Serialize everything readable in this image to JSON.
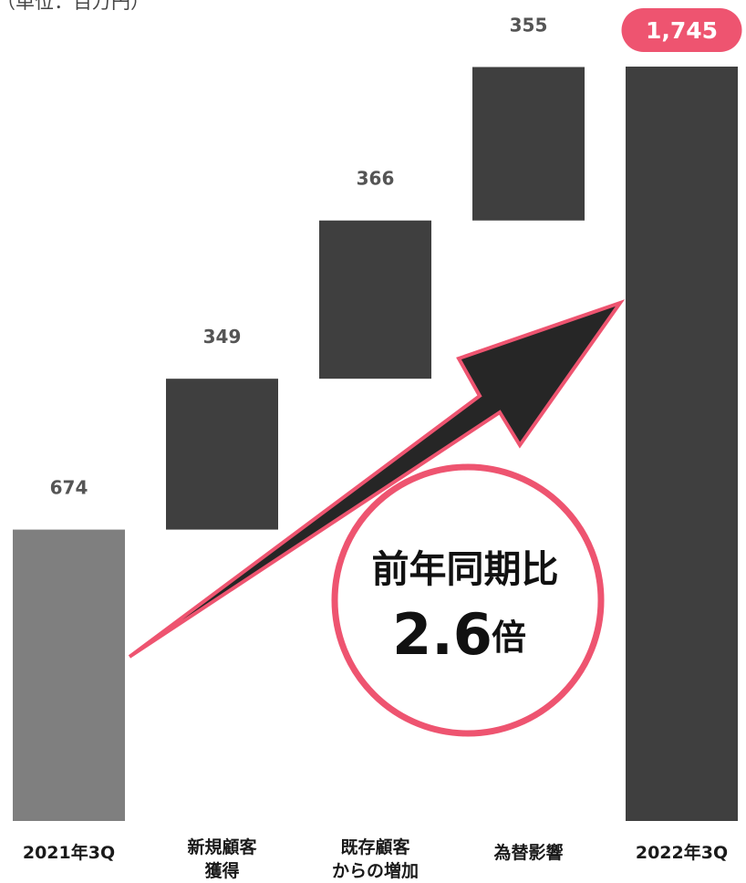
{
  "unit_note": "（単位：百万円）",
  "colors": {
    "start_bar": "#7f7f7f",
    "bar": "#3f3f3f",
    "accent": "#ee5470",
    "arrow": "#262626"
  },
  "callout": {
    "line1": "前年同期比",
    "value": "2.6",
    "suffix": "倍"
  },
  "chart_data": {
    "type": "bar",
    "subtype": "waterfall",
    "categories": [
      "2021年3Q",
      "新規顧客獲得",
      "既存顧客からの増加",
      "為替影響",
      "2022年3Q"
    ],
    "category_lines": [
      [
        "2021年3Q"
      ],
      [
        "新規顧客",
        "獲得"
      ],
      [
        "既存顧客",
        "からの増加"
      ],
      [
        "為替影響"
      ],
      [
        "2022年3Q"
      ]
    ],
    "values": [
      674,
      349,
      366,
      355,
      1745
    ],
    "value_labels": [
      "674",
      "349",
      "366",
      "355",
      "1,745"
    ],
    "roles": [
      "total",
      "increase",
      "increase",
      "increase",
      "total"
    ],
    "ylim": [
      0,
      1745
    ],
    "grid": false,
    "legend": "none"
  }
}
